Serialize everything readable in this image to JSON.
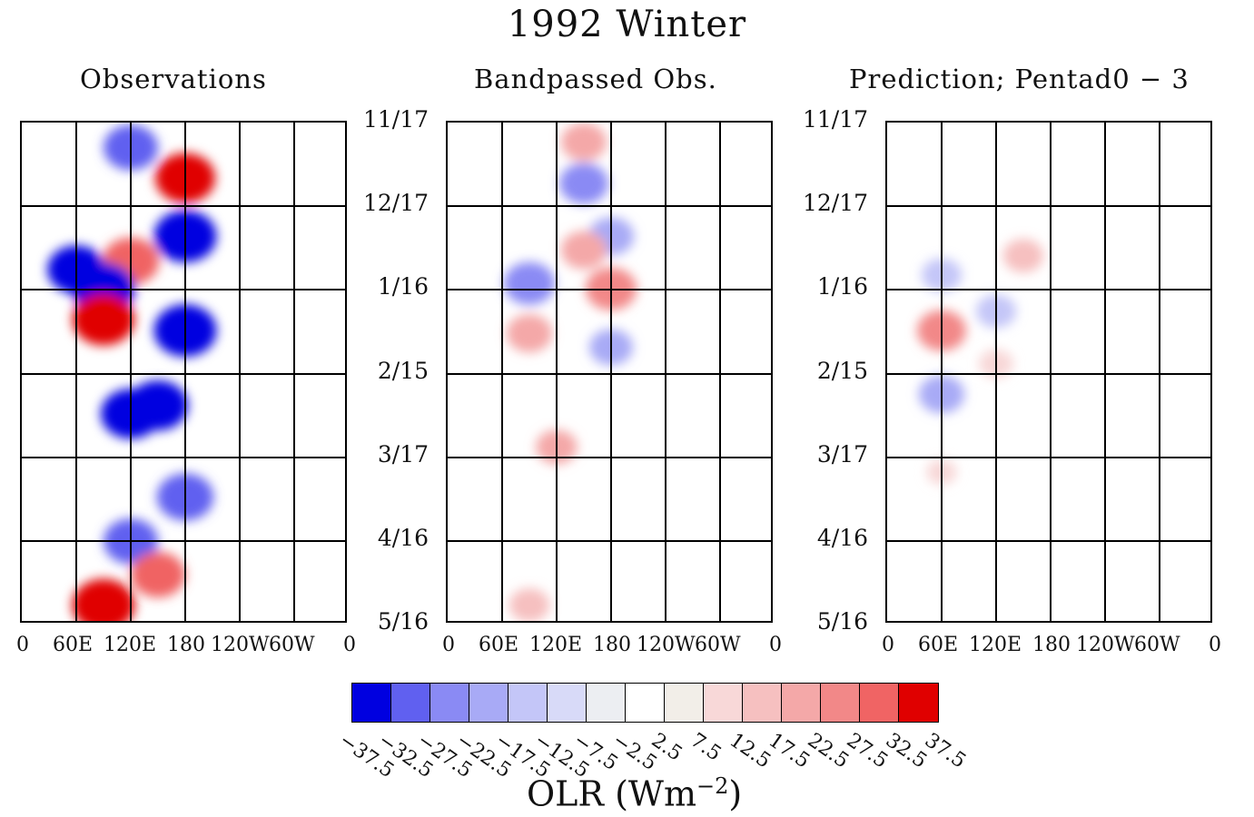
{
  "title": "1992 Winter",
  "panels": [
    {
      "title": "Observations"
    },
    {
      "title": "Bandpassed Obs."
    },
    {
      "title": "Prediction; Pentad0 − 3"
    }
  ],
  "y_tick_labels": [
    "11/17",
    "12/17",
    "1/16",
    "2/15",
    "3/17",
    "4/16",
    "5/16"
  ],
  "x_tick_labels": [
    "0",
    "60E",
    "120E",
    "180",
    "120W",
    "60W",
    "0"
  ],
  "colorbar": {
    "title": "OLR (Wm",
    "title_exp": "−2",
    "title_close": ")",
    "labels": [
      "−37.5",
      "−32.5",
      "−27.5",
      "−22.5",
      "−17.5",
      "−12.5",
      "−7.5",
      "−2.5",
      "2.5",
      "7.5",
      "12.5",
      "17.5",
      "22.5",
      "27.5",
      "32.5",
      "37.5"
    ],
    "colors": [
      "#0000e0",
      "#6060f0",
      "#8a8af4",
      "#a8aaf6",
      "#c4c6f8",
      "#d8daf8",
      "#eceef2",
      "#ffffff",
      "#f2eee8",
      "#f8d8d8",
      "#f6c0c0",
      "#f4a8a8",
      "#f28888",
      "#f06464",
      "#e00000"
    ]
  },
  "chart_data": [
    {
      "type": "heatmap",
      "title": "Observations",
      "x_ticks": [
        "0",
        "60E",
        "120E",
        "180",
        "120W",
        "60W",
        "0"
      ],
      "y_ticks": [
        "11/17",
        "12/17",
        "1/16",
        "2/15",
        "3/17",
        "4/16",
        "5/16"
      ],
      "variable": "OLR (Wm-2)",
      "value_range": [
        -37.5,
        37.5
      ],
      "anomalies": [
        {
          "lon": 120,
          "date": "11/26",
          "value": -30
        },
        {
          "lon": 180,
          "date": "12/07",
          "value": 35
        },
        {
          "lon": 180,
          "date": "12/28",
          "value": -37.5
        },
        {
          "lon": 120,
          "date": "01/06",
          "value": 32
        },
        {
          "lon": 60,
          "date": "01/09",
          "value": -33
        },
        {
          "lon": 90,
          "date": "01/16",
          "value": -37.5
        },
        {
          "lon": 90,
          "date": "01/27",
          "value": 37
        },
        {
          "lon": 180,
          "date": "01/31",
          "value": -37.5
        },
        {
          "lon": 150,
          "date": "02/27",
          "value": -35
        },
        {
          "lon": 120,
          "date": "03/01",
          "value": -35
        },
        {
          "lon": 180,
          "date": "03/31",
          "value": -32
        },
        {
          "lon": 120,
          "date": "04/16",
          "value": -30
        },
        {
          "lon": 90,
          "date": "05/09",
          "value": 37.5
        },
        {
          "lon": 150,
          "date": "04/28",
          "value": 30
        }
      ]
    },
    {
      "type": "heatmap",
      "title": "Bandpassed Obs.",
      "x_ticks": [
        "0",
        "60E",
        "120E",
        "180",
        "120W",
        "60W",
        "0"
      ],
      "y_ticks": [
        "11/17",
        "12/17",
        "1/16",
        "2/15",
        "3/17",
        "4/16",
        "5/16"
      ],
      "variable": "OLR (Wm-2)",
      "value_range": [
        -37.5,
        37.5
      ],
      "anomalies": [
        {
          "lon": 150,
          "date": "11/24",
          "value": 22
        },
        {
          "lon": 150,
          "date": "12/09",
          "value": -25
        },
        {
          "lon": 180,
          "date": "12/28",
          "value": -22
        },
        {
          "lon": 150,
          "date": "01/02",
          "value": 22
        },
        {
          "lon": 90,
          "date": "01/14",
          "value": -27
        },
        {
          "lon": 180,
          "date": "01/16",
          "value": 27
        },
        {
          "lon": 90,
          "date": "02/01",
          "value": 22
        },
        {
          "lon": 180,
          "date": "02/06",
          "value": -20
        },
        {
          "lon": 120,
          "date": "03/13",
          "value": 18
        },
        {
          "lon": 90,
          "date": "05/09",
          "value": 17
        }
      ]
    },
    {
      "type": "heatmap",
      "title": "Prediction; Pentad0 − 3",
      "x_ticks": [
        "0",
        "60E",
        "120E",
        "180",
        "120W",
        "60W",
        "0"
      ],
      "y_ticks": [
        "11/17",
        "12/17",
        "1/16",
        "2/15",
        "3/17",
        "4/16",
        "5/16"
      ],
      "variable": "OLR (Wm-2)",
      "value_range": [
        -37.5,
        37.5
      ],
      "anomalies": [
        {
          "lon": 150,
          "date": "01/04",
          "value": 17
        },
        {
          "lon": 60,
          "date": "01/11",
          "value": -17
        },
        {
          "lon": 120,
          "date": "01/24",
          "value": -17
        },
        {
          "lon": 60,
          "date": "01/31",
          "value": 25
        },
        {
          "lon": 120,
          "date": "02/12",
          "value": 12
        },
        {
          "lon": 60,
          "date": "02/23",
          "value": -22
        },
        {
          "lon": 60,
          "date": "03/22",
          "value": 8
        }
      ]
    }
  ]
}
